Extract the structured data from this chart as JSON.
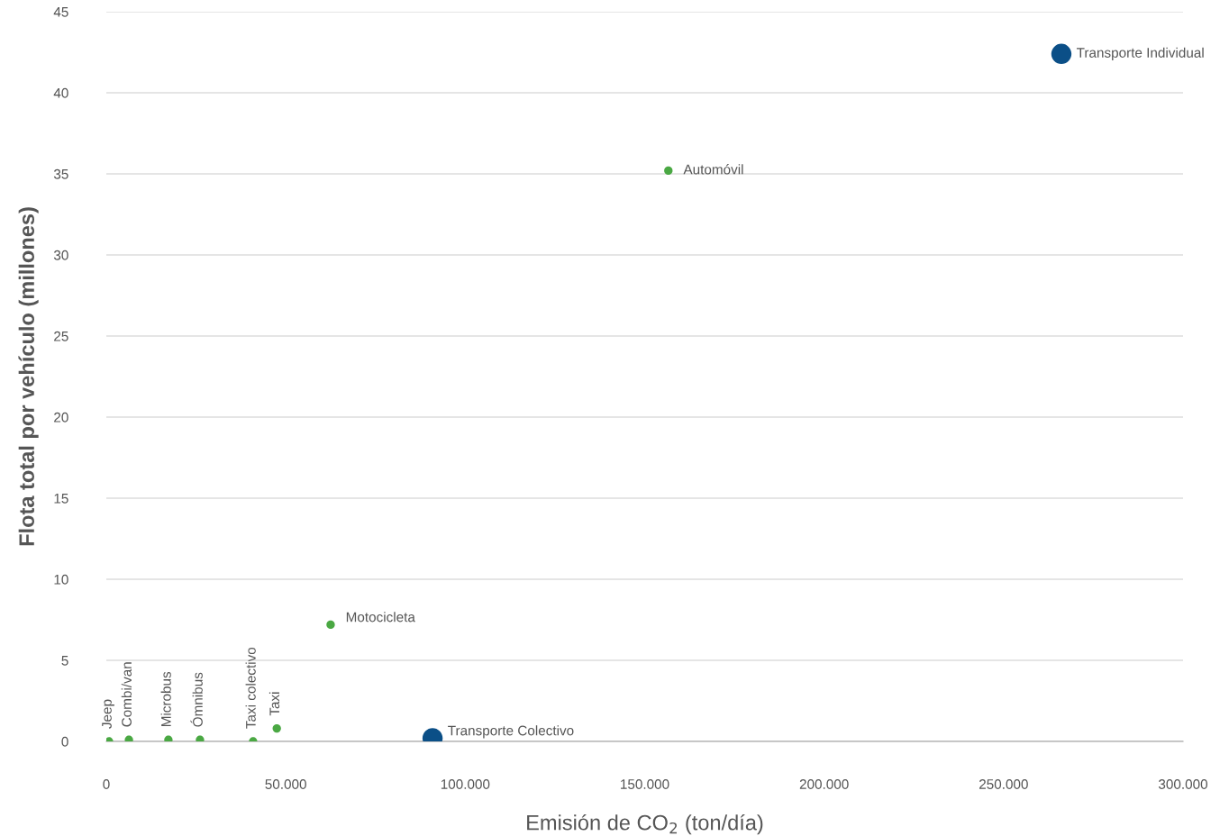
{
  "chart_data": {
    "type": "scatter",
    "xlabel": "Emisión de CO$_{2}$ (ton/día)",
    "ylabel": "Flota total por vehículo (millones)",
    "series": [
      {
        "color": "#4aa843",
        "x": [
          750,
          6300,
          17300,
          26100,
          40900,
          47500,
          62500,
          156600
        ],
        "values": [
          0,
          0.1,
          0.1,
          0.1,
          0,
          0.8,
          7.2,
          35.2
        ]
      },
      {
        "color": "#0b4f87",
        "x": [
          90900,
          266100
        ],
        "values": [
          0.2,
          42.4
        ]
      }
    ],
    "annotations": [
      {
        "text": "Jeep",
        "x": 750,
        "y": 0
      },
      {
        "text": "Combi/van",
        "x": 6300,
        "y": 0.1
      },
      {
        "text": "Microbus",
        "x": 17300,
        "y": 0.1
      },
      {
        "text": "Ómnibus",
        "x": 26100,
        "y": 0.1
      },
      {
        "text": "Taxi colectivo",
        "x": 40900,
        "y": 0
      },
      {
        "text": "Taxi",
        "x": 47500,
        "y": 0.8
      },
      {
        "text": "Motocicleta",
        "x": 62500,
        "y": 7.2
      },
      {
        "text": "Automóvil",
        "x": 156600,
        "y": 35.2
      },
      {
        "text": "Transporte Colectivo",
        "x": 90900,
        "y": 0.2
      },
      {
        "text": "Transporte Individual",
        "x": 266100,
        "y": 42.4
      }
    ],
    "xlim": [
      0,
      300000
    ],
    "xticks": [
      0,
      {
        "value": 50000,
        "label": "50.000"
      },
      {
        "value": 100000,
        "label": "100.000"
      },
      {
        "value": 150000,
        "label": "150.000"
      },
      {
        "value": 200000,
        "label": "200.000"
      },
      {
        "value": 250000,
        "label": "250.000"
      },
      {
        "value": 300000,
        "label": "300.000"
      }
    ],
    "ylim": [
      0,
      45
    ],
    "yticks": [
      0,
      5,
      10,
      15,
      20,
      25,
      30,
      35,
      40,
      45
    ],
    "grid": "y",
    "marker": "circle"
  }
}
